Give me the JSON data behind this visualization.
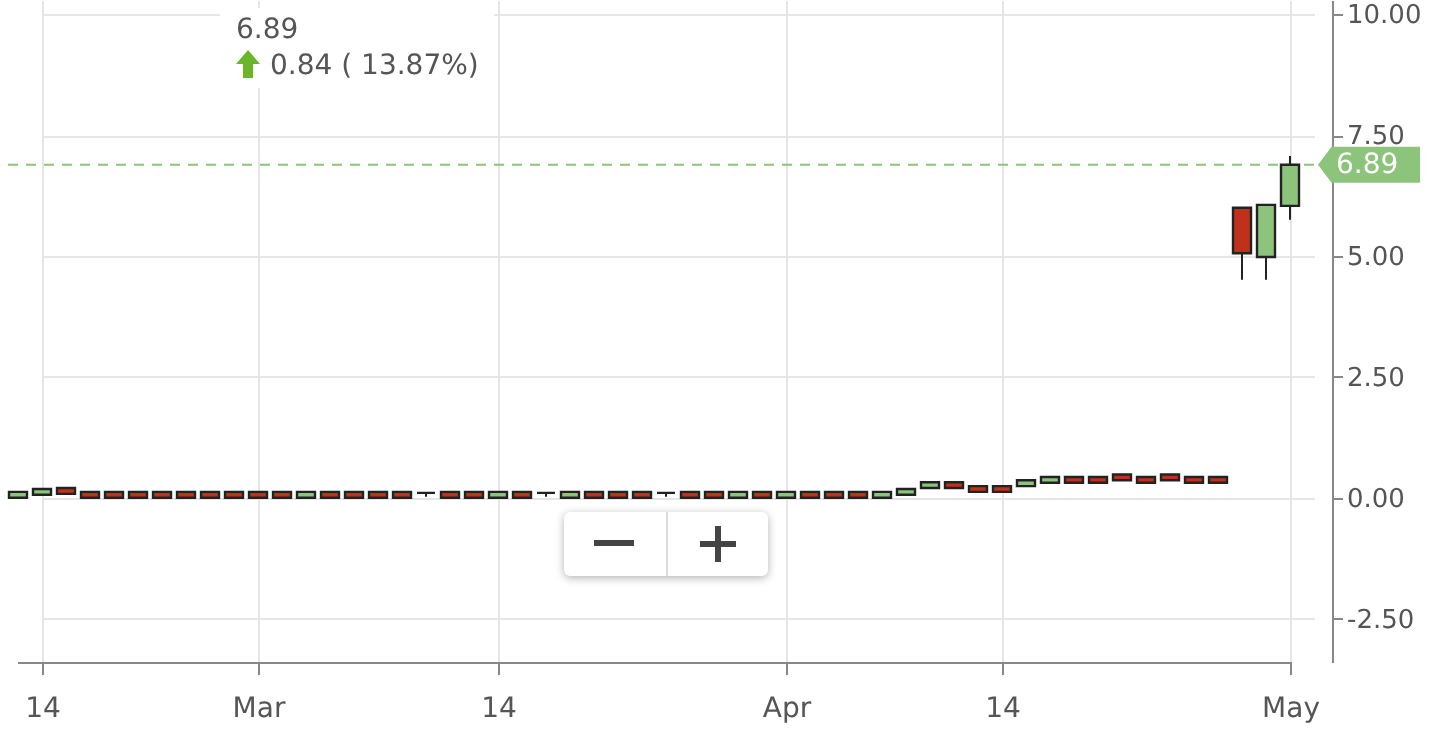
{
  "chart_data": {
    "type": "candlestick",
    "annotations": [
      "6.89",
      "0.84 ( 13.87%)"
    ],
    "categories": [
      null,
      "14",
      null,
      null,
      null,
      null,
      null,
      null,
      null,
      null,
      "Mar",
      null,
      null,
      null,
      null,
      null,
      null,
      null,
      null,
      null,
      "14",
      null,
      null,
      null,
      null,
      null,
      null,
      null,
      null,
      null,
      null,
      null,
      "Apr",
      null,
      null,
      null,
      null,
      null,
      null,
      null,
      null,
      "14",
      null,
      null,
      null,
      null,
      null,
      null,
      null,
      null,
      null,
      null,
      null,
      "May"
    ],
    "ylim": [
      -3.4,
      10.3
    ],
    "yticks": [
      {
        "value": -2.5,
        "label": "-2.50"
      },
      {
        "value": 0,
        "label": "0.00"
      },
      {
        "value": 2.5,
        "label": "2.50"
      },
      {
        "value": 5,
        "label": "5.00"
      },
      {
        "value": 7.5,
        "label": "7.50"
      },
      {
        "value": 10,
        "label": "10.00"
      }
    ],
    "grid": true,
    "ref_lines": [
      {
        "axis": "y",
        "value": 6.89,
        "label": "6.89",
        "color": "#8bc47a",
        "line_style": "dashed"
      }
    ],
    "ohlc": [
      [
        0.0,
        0.12,
        0.0,
        0.12
      ],
      [
        0.06,
        0.18,
        0.06,
        0.18
      ],
      [
        0.2,
        0.2,
        0.08,
        0.08
      ],
      [
        0.12,
        0.12,
        0.0,
        0.0
      ],
      [
        0.12,
        0.12,
        0.0,
        0.0
      ],
      [
        0.12,
        0.12,
        0.0,
        0.0
      ],
      [
        0.12,
        0.12,
        0.0,
        0.0
      ],
      [
        0.12,
        0.12,
        0.0,
        0.0
      ],
      [
        0.12,
        0.12,
        0.0,
        0.0
      ],
      [
        0.12,
        0.12,
        0.0,
        0.0
      ],
      [
        0.12,
        0.12,
        0.0,
        0.0
      ],
      [
        0.12,
        0.12,
        0.0,
        0.0
      ],
      [
        0.0,
        0.12,
        0.0,
        0.12
      ],
      [
        0.12,
        0.12,
        0.0,
        0.0
      ],
      [
        0.12,
        0.12,
        0.0,
        0.0
      ],
      [
        0.12,
        0.12,
        0.0,
        0.0
      ],
      [
        0.12,
        0.12,
        0.0,
        0.0
      ],
      [
        0.1,
        0.1,
        0.02,
        0.1
      ],
      [
        0.12,
        0.12,
        0.0,
        0.0
      ],
      [
        0.12,
        0.12,
        0.0,
        0.0
      ],
      [
        0.0,
        0.12,
        0.0,
        0.12
      ],
      [
        0.12,
        0.12,
        0.0,
        0.0
      ],
      [
        0.1,
        0.1,
        0.02,
        0.1
      ],
      [
        0.0,
        0.12,
        0.0,
        0.12
      ],
      [
        0.12,
        0.12,
        0.0,
        0.0
      ],
      [
        0.12,
        0.12,
        0.0,
        0.0
      ],
      [
        0.12,
        0.12,
        0.0,
        0.0
      ],
      [
        0.1,
        0.1,
        0.02,
        0.1
      ],
      [
        0.12,
        0.12,
        0.0,
        0.0
      ],
      [
        0.12,
        0.12,
        0.0,
        0.0
      ],
      [
        0.0,
        0.12,
        0.0,
        0.12
      ],
      [
        0.12,
        0.12,
        0.0,
        0.0
      ],
      [
        0.0,
        0.12,
        0.0,
        0.12
      ],
      [
        0.12,
        0.12,
        0.0,
        0.0
      ],
      [
        0.12,
        0.12,
        0.0,
        0.0
      ],
      [
        0.12,
        0.12,
        0.0,
        0.0
      ],
      [
        0.0,
        0.12,
        0.0,
        0.12
      ],
      [
        0.06,
        0.18,
        0.06,
        0.18
      ],
      [
        0.2,
        0.32,
        0.2,
        0.32
      ],
      [
        0.32,
        0.32,
        0.2,
        0.2
      ],
      [
        0.24,
        0.24,
        0.12,
        0.12
      ],
      [
        0.24,
        0.24,
        0.12,
        0.12
      ],
      [
        0.24,
        0.36,
        0.24,
        0.36
      ],
      [
        0.31,
        0.43,
        0.31,
        0.43
      ],
      [
        0.43,
        0.43,
        0.31,
        0.31
      ],
      [
        0.43,
        0.43,
        0.31,
        0.31
      ],
      [
        0.48,
        0.48,
        0.36,
        0.36
      ],
      [
        0.43,
        0.43,
        0.31,
        0.31
      ],
      [
        0.48,
        0.48,
        0.36,
        0.36
      ],
      [
        0.43,
        0.43,
        0.31,
        0.31
      ],
      [
        0.43,
        0.43,
        0.31,
        0.31
      ],
      [
        6.0,
        6.0,
        4.51,
        5.06
      ],
      [
        4.98,
        6.06,
        4.51,
        6.06
      ],
      [
        6.04,
        7.07,
        5.75,
        6.89
      ]
    ],
    "colors": [
      "#8bc47a",
      "#8bc47a",
      "#c0311b",
      "#c0311b",
      "#c0311b",
      "#c0311b",
      "#c0311b",
      "#c0311b",
      "#c0311b",
      "#c0311b",
      "#c0311b",
      "#c0311b",
      "#8bc47a",
      "#c0311b",
      "#c0311b",
      "#c0311b",
      "#c0311b",
      "#222222",
      "#c0311b",
      "#c0311b",
      "#8bc47a",
      "#c0311b",
      "#222222",
      "#8bc47a",
      "#c0311b",
      "#c0311b",
      "#c0311b",
      "#222222",
      "#c0311b",
      "#c0311b",
      "#8bc47a",
      "#c0311b",
      "#8bc47a",
      "#c0311b",
      "#c0311b",
      "#c0311b",
      "#8bc47a",
      "#8bc47a",
      "#8bc47a",
      "#c0311b",
      "#c0311b",
      "#c0311b",
      "#8bc47a",
      "#8bc47a",
      "#c0311b",
      "#c0311b",
      "#c0311b",
      "#c0311b",
      "#c0311b",
      "#c0311b",
      "#c0311b",
      "#c0311b",
      "#8bc47a",
      "#8bc47a"
    ]
  }
}
